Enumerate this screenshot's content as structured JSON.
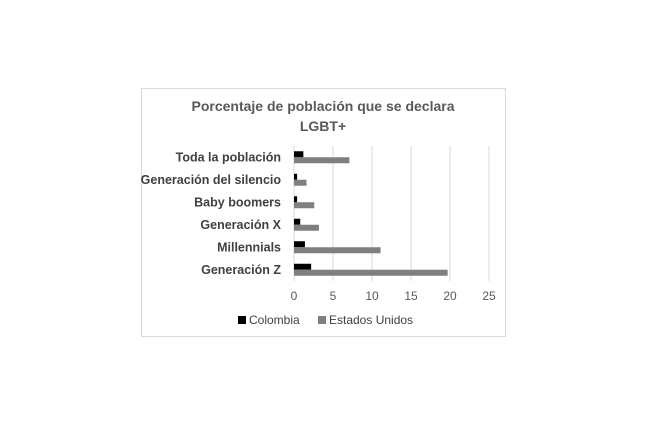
{
  "chart_data": {
    "type": "bar",
    "orientation": "horizontal",
    "title_lines": [
      "Porcentaje de población que se declara",
      "LGBT+"
    ],
    "categories": [
      "Toda la población",
      "Generación del silencio",
      "Baby boomers",
      "Generación X",
      "Millennials",
      "Generación Z"
    ],
    "series": [
      {
        "name": "Colombia",
        "color": "#000000",
        "values": [
          1.2,
          0.4,
          0.4,
          0.8,
          1.4,
          2.2
        ]
      },
      {
        "name": "Estados Unidos",
        "color": "#7f7f7f",
        "values": [
          7.1,
          1.6,
          2.6,
          3.2,
          11.1,
          19.7
        ]
      }
    ],
    "xlim": [
      0,
      25
    ],
    "xticks": [
      "0",
      "5",
      "10",
      "15",
      "20",
      "25"
    ],
    "grid": "vertical",
    "legend_position": "bottom"
  }
}
